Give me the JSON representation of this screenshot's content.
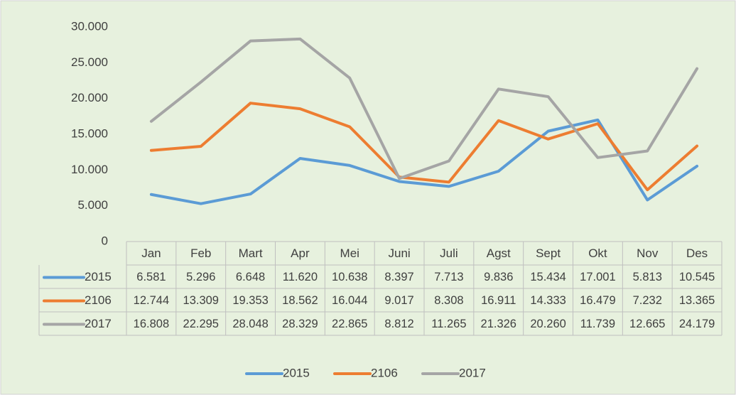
{
  "chart_data": {
    "type": "line",
    "categories": [
      "Jan",
      "Feb",
      "Mart",
      "Apr",
      "Mei",
      "Juni",
      "Juli",
      "Agst",
      "Sept",
      "Okt",
      "Nov",
      "Des"
    ],
    "series": [
      {
        "name": "2015",
        "color": "#5b9bd5",
        "values": [
          6581,
          5296,
          6648,
          11620,
          10638,
          8397,
          7713,
          9836,
          15434,
          17001,
          5813,
          10545
        ],
        "value_labels": [
          "6.581",
          "5.296",
          "6.648",
          "11.620",
          "10.638",
          "8.397",
          "7.713",
          "9.836",
          "15.434",
          "17.001",
          "5.813",
          "10.545"
        ]
      },
      {
        "name": "2106",
        "color": "#ed7d31",
        "values": [
          12744,
          13309,
          19353,
          18562,
          16044,
          9017,
          8308,
          16911,
          14333,
          16479,
          7232,
          13365
        ],
        "value_labels": [
          "12.744",
          "13.309",
          "19.353",
          "18.562",
          "16.044",
          "9.017",
          "8.308",
          "16.911",
          "14.333",
          "16.479",
          "7.232",
          "13.365"
        ]
      },
      {
        "name": "2017",
        "color": "#a5a5a5",
        "values": [
          16808,
          22295,
          28048,
          28329,
          22865,
          8812,
          11265,
          21326,
          20260,
          11739,
          12665,
          24179
        ],
        "value_labels": [
          "16.808",
          "22.295",
          "28.048",
          "28.329",
          "22.865",
          "8.812",
          "11.265",
          "21.326",
          "20.260",
          "11.739",
          "12.665",
          "24.179"
        ]
      }
    ],
    "ylim": [
      0,
      30000
    ],
    "yticks": [
      0,
      {
        "value": 5000,
        "label": "5.000"
      },
      {
        "value": 10000,
        "label": "10.000"
      },
      {
        "value": 15000,
        "label": "15.000"
      },
      {
        "value": 20000,
        "label": "20.000"
      },
      {
        "value": 25000,
        "label": "25.000"
      },
      {
        "value": 30000,
        "label": "30.000"
      }
    ],
    "grid": false,
    "legend": "bottom"
  }
}
